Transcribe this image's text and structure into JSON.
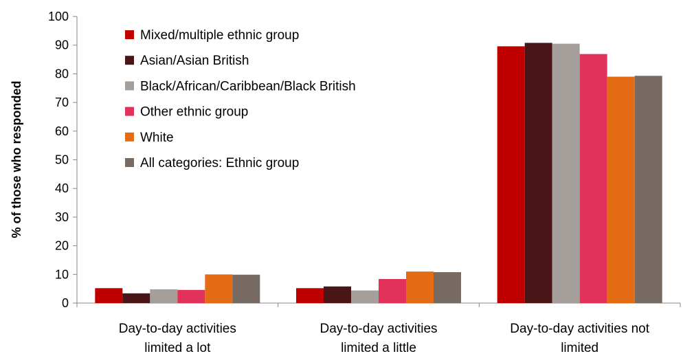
{
  "chart_data": {
    "type": "bar",
    "ylabel": "% of those who responded",
    "ylim": [
      0,
      100
    ],
    "yticks": [
      0,
      10,
      20,
      30,
      40,
      50,
      60,
      70,
      80,
      90,
      100
    ],
    "grid": false,
    "legend_position": "top-left",
    "categories": [
      [
        "Day-to-day activities",
        "limited a lot"
      ],
      [
        "Day-to-day activities",
        "limited a little"
      ],
      [
        "Day-to-day activities not",
        "limited"
      ]
    ],
    "series": [
      {
        "name": "Mixed/multiple ethnic group",
        "color": "#C00000",
        "values": [
          5.2,
          5.2,
          89.6
        ]
      },
      {
        "name": "Asian/Asian British",
        "color": "#4A1517",
        "values": [
          3.4,
          5.8,
          90.8
        ]
      },
      {
        "name": "Black/African/Caribbean/Black British",
        "color": "#A59F9B",
        "values": [
          4.8,
          4.4,
          90.5
        ]
      },
      {
        "name": "Other ethnic group",
        "color": "#E0325A",
        "values": [
          4.6,
          8.4,
          86.9
        ]
      },
      {
        "name": "White",
        "color": "#E36C14",
        "values": [
          10.0,
          11.0,
          79.0
        ]
      },
      {
        "name": "All categories: Ethnic group",
        "color": "#766A62",
        "values": [
          9.9,
          10.8,
          79.3
        ]
      }
    ]
  }
}
